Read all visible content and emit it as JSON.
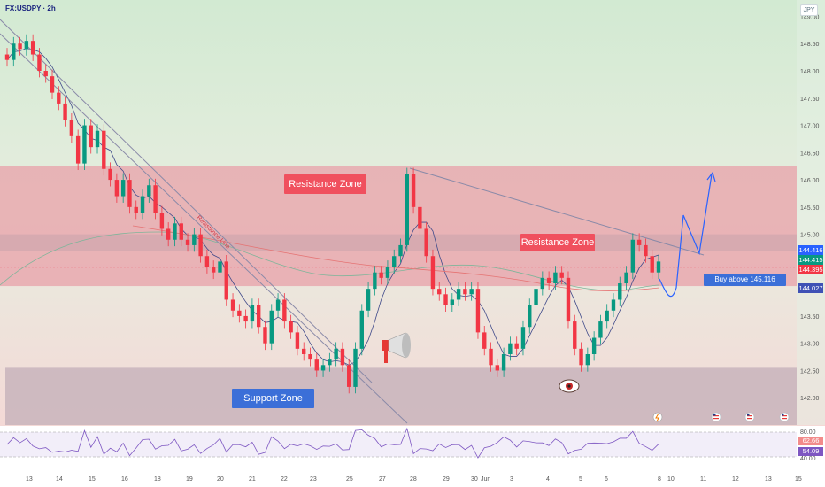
{
  "symbol": "FX:USDPY · 2h",
  "currency": "JPY",
  "annotations": {
    "resistance_zone_left": "Resistance Zone",
    "resistance_zone_right": "Resistance Zone",
    "support_zone": "Support Zone",
    "buy_above": "Buy above 145.116",
    "trendline_label": "Resistance Line"
  },
  "price_tags": {
    "top": "144.416",
    "mid": "144.415",
    "current": "144.395",
    "ma": "144.027"
  },
  "rsi_tags": {
    "upper": "62.66",
    "lower": "54.09"
  },
  "colors": {
    "up": "#089981",
    "down": "#f23645",
    "resistance_zone": "#e8a0a8",
    "support_zone": "#c8b4bc",
    "badge_red": "#f0505e",
    "badge_blue": "#3b6fd8",
    "trend_line": "#8a8aa8",
    "projection": "#2962ff"
  },
  "chart_data": {
    "type": "candlestick",
    "title": "FX:USDPY · 2h",
    "ylim": [
      141.5,
      149.3
    ],
    "yticks": [
      142.0,
      142.5,
      143.0,
      143.5,
      144.0,
      144.5,
      145.0,
      145.5,
      146.0,
      146.5,
      147.0,
      147.5,
      148.0,
      148.5,
      149.0
    ],
    "ytick_labels": [
      "142.00",
      "142.50",
      "143.00",
      "143.50",
      "144.00",
      "144.50",
      "145.00",
      "145.50",
      "146.00",
      "146.50",
      "147.00",
      "147.50",
      "148.00",
      "148.50",
      "149.00"
    ],
    "x_labels": [
      "13",
      "14",
      "15",
      "16",
      "18",
      "19",
      "20",
      "21",
      "22",
      "23",
      "25",
      "27",
      "28",
      "29",
      "30",
      "Jun",
      "3",
      "4",
      "5",
      "6",
      "8",
      "10",
      "11",
      "12",
      "13",
      "15"
    ],
    "resistance_zone": [
      144.05,
      146.25
    ],
    "resistance_inner_band": [
      144.7,
      145.0
    ],
    "support_zone": [
      141.5,
      142.55
    ],
    "buy_level": 145.116,
    "close_series": [
      148.2,
      148.5,
      148.4,
      148.55,
      148.3,
      148.0,
      147.9,
      147.6,
      147.4,
      147.1,
      146.8,
      146.3,
      147.0,
      146.6,
      146.9,
      146.2,
      146.0,
      145.7,
      146.0,
      145.5,
      145.4,
      145.7,
      145.9,
      145.4,
      145.1,
      144.9,
      145.2,
      144.9,
      144.8,
      145.0,
      144.6,
      144.4,
      144.3,
      144.5,
      143.8,
      143.6,
      143.5,
      143.4,
      143.7,
      143.3,
      143.0,
      143.6,
      143.8,
      143.4,
      143.2,
      142.9,
      142.8,
      142.7,
      142.5,
      142.6,
      142.7,
      142.9,
      142.6,
      142.2,
      142.9,
      143.6,
      144.0,
      144.3,
      144.2,
      144.4,
      144.6,
      144.8,
      146.1,
      145.5,
      145.1,
      144.6,
      144.0,
      143.9,
      143.7,
      143.8,
      144.0,
      143.9,
      144.0,
      143.2,
      142.9,
      142.6,
      142.5,
      142.8,
      143.0,
      142.9,
      143.3,
      143.7,
      144.0,
      144.2,
      144.1,
      144.3,
      144.2,
      143.4,
      142.9,
      142.6,
      142.8,
      143.1,
      143.4,
      143.6,
      143.8,
      144.1,
      144.3,
      144.9,
      144.8,
      144.6,
      144.3,
      144.5
    ]
  }
}
